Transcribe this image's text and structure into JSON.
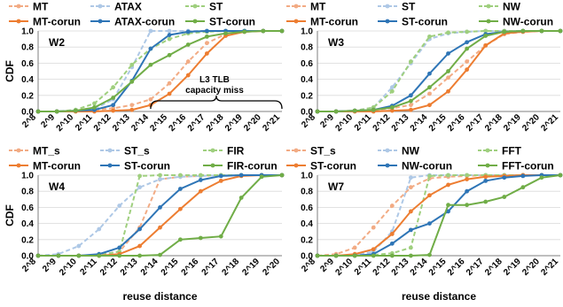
{
  "chart_data": [
    {
      "type": "line",
      "panel_label": "W2",
      "ylabel": "CDF",
      "xlabel": "",
      "ylim": [
        0,
        1
      ],
      "yticks": [
        "0.0",
        "0.2",
        "0.4",
        "0.6",
        "0.8",
        "1.0"
      ],
      "x": [
        "2^8",
        "2^9",
        "2^10",
        "2^11",
        "2^12",
        "2^13",
        "2^14",
        "2^15",
        "2^16",
        "2^17",
        "2^18",
        "2^19",
        "2^20",
        "2^21"
      ],
      "annotation": {
        "line1": "L3 TLB",
        "line2": "capacity miss"
      },
      "series": [
        {
          "name": "MT",
          "color": "#f2ab84",
          "style": "dashed",
          "values": [
            0.0,
            0.0,
            0.01,
            0.02,
            0.04,
            0.08,
            0.15,
            0.35,
            0.62,
            0.85,
            0.96,
            0.99,
            1.0,
            1.0
          ]
        },
        {
          "name": "ATAX",
          "color": "#aec8e6",
          "style": "dashed",
          "values": [
            0.0,
            0.0,
            0.01,
            0.03,
            0.15,
            0.55,
            1.0,
            1.0,
            1.0,
            1.0,
            1.0,
            1.0,
            1.0,
            1.0
          ]
        },
        {
          "name": "ST",
          "color": "#9fcf7e",
          "style": "dashed",
          "values": [
            0.0,
            0.0,
            0.02,
            0.1,
            0.3,
            0.58,
            0.78,
            0.9,
            0.97,
            0.99,
            1.0,
            1.0,
            1.0,
            1.0
          ]
        },
        {
          "name": "MT-corun",
          "color": "#ed7d31",
          "style": "solid",
          "values": [
            0.0,
            0.0,
            0.0,
            0.0,
            0.01,
            0.02,
            0.08,
            0.22,
            0.45,
            0.72,
            0.94,
            0.99,
            1.0,
            1.0
          ]
        },
        {
          "name": "ATAX-corun",
          "color": "#2e75b6",
          "style": "solid",
          "values": [
            0.0,
            0.0,
            0.01,
            0.02,
            0.08,
            0.38,
            0.78,
            0.95,
            0.99,
            1.0,
            1.0,
            1.0,
            1.0,
            1.0
          ]
        },
        {
          "name": "ST-corun",
          "color": "#70ad47",
          "style": "solid",
          "values": [
            0.0,
            0.0,
            0.01,
            0.05,
            0.17,
            0.37,
            0.58,
            0.7,
            0.83,
            0.93,
            0.97,
            0.99,
            1.0,
            1.0
          ]
        }
      ]
    },
    {
      "type": "line",
      "panel_label": "W3",
      "ylabel": "",
      "xlabel": "",
      "ylim": [
        0,
        1
      ],
      "yticks": [
        "0.0",
        "0.2",
        "0.4",
        "0.6",
        "0.8",
        "1.0"
      ],
      "x": [
        "2^8",
        "2^9",
        "2^10",
        "2^11",
        "2^12",
        "2^13",
        "2^14",
        "2^15",
        "2^16",
        "2^17",
        "2^18",
        "2^19",
        "2^20",
        "2^21"
      ],
      "series": [
        {
          "name": "MT",
          "color": "#f2ab84",
          "style": "dashed",
          "values": [
            0.0,
            0.0,
            0.01,
            0.02,
            0.04,
            0.08,
            0.22,
            0.42,
            0.62,
            0.82,
            0.96,
            0.99,
            1.0,
            1.0
          ]
        },
        {
          "name": "ST",
          "color": "#aec8e6",
          "style": "dashed",
          "values": [
            0.0,
            0.0,
            0.01,
            0.05,
            0.3,
            0.6,
            0.9,
            0.97,
            0.99,
            1.0,
            1.0,
            1.0,
            1.0,
            1.0
          ]
        },
        {
          "name": "NW",
          "color": "#9fcf7e",
          "style": "dashed",
          "values": [
            0.0,
            0.0,
            0.01,
            0.05,
            0.25,
            0.62,
            0.93,
            0.98,
            0.99,
            1.0,
            1.0,
            1.0,
            1.0,
            1.0
          ]
        },
        {
          "name": "MT-corun",
          "color": "#ed7d31",
          "style": "solid",
          "values": [
            0.0,
            0.0,
            0.0,
            0.0,
            0.01,
            0.02,
            0.08,
            0.25,
            0.52,
            0.82,
            0.97,
            0.99,
            1.0,
            1.0
          ]
        },
        {
          "name": "ST-corun",
          "color": "#2e75b6",
          "style": "solid",
          "values": [
            0.0,
            0.0,
            0.01,
            0.02,
            0.07,
            0.2,
            0.47,
            0.72,
            0.86,
            0.96,
            0.99,
            1.0,
            1.0,
            1.0
          ]
        },
        {
          "name": "NW-corun",
          "color": "#70ad47",
          "style": "solid",
          "values": [
            0.0,
            0.0,
            0.01,
            0.02,
            0.05,
            0.13,
            0.3,
            0.5,
            0.78,
            0.94,
            0.99,
            1.0,
            1.0,
            1.0
          ]
        }
      ]
    },
    {
      "type": "line",
      "panel_label": "W4",
      "ylabel": "CDF",
      "xlabel": "reuse distance",
      "ylim": [
        0,
        1
      ],
      "yticks": [
        "0.0",
        "0.2",
        "0.4",
        "0.6",
        "0.8",
        "1.0"
      ],
      "x": [
        "2^8",
        "2^9",
        "2^10",
        "2^11",
        "2^12",
        "2^13",
        "2^14",
        "2^15",
        "2^16",
        "2^17",
        "2^18",
        "2^19",
        "2^20"
      ],
      "series": [
        {
          "name": "MT_s",
          "color": "#f2ab84",
          "style": "dashed",
          "values": [
            0.0,
            0.0,
            0.0,
            0.01,
            0.05,
            0.35,
            0.95,
            0.98,
            0.99,
            1.0,
            1.0,
            1.0,
            1.0
          ]
        },
        {
          "name": "ST_s",
          "color": "#aec8e6",
          "style": "dashed",
          "values": [
            0.0,
            0.02,
            0.12,
            0.33,
            0.62,
            0.85,
            0.95,
            0.98,
            0.99,
            1.0,
            1.0,
            1.0,
            1.0
          ]
        },
        {
          "name": "FIR",
          "color": "#9fcf7e",
          "style": "dashed",
          "values": [
            0.0,
            0.0,
            0.0,
            0.01,
            0.05,
            0.99,
            1.0,
            1.0,
            1.0,
            1.0,
            1.0,
            1.0,
            1.0
          ]
        },
        {
          "name": "MT-corun",
          "color": "#ed7d31",
          "style": "solid",
          "values": [
            0.0,
            0.0,
            0.0,
            0.0,
            0.02,
            0.12,
            0.35,
            0.58,
            0.8,
            0.93,
            0.99,
            1.0,
            1.0
          ]
        },
        {
          "name": "ST-corun",
          "color": "#2e75b6",
          "style": "solid",
          "values": [
            0.0,
            0.0,
            0.0,
            0.02,
            0.1,
            0.33,
            0.6,
            0.83,
            0.94,
            0.99,
            1.0,
            1.0,
            1.0
          ]
        },
        {
          "name": "FIR-corun",
          "color": "#70ad47",
          "style": "solid",
          "values": [
            0.0,
            0.0,
            0.0,
            0.0,
            0.0,
            0.0,
            0.01,
            0.2,
            0.22,
            0.24,
            0.72,
            0.98,
            1.0
          ]
        }
      ]
    },
    {
      "type": "line",
      "panel_label": "W7",
      "ylabel": "",
      "xlabel": "reuse distance",
      "ylim": [
        0,
        1
      ],
      "yticks": [
        "0.0",
        "0.2",
        "0.4",
        "0.6",
        "0.8",
        "1.0"
      ],
      "x": [
        "2^8",
        "2^9",
        "2^10",
        "2^11",
        "2^12",
        "2^13",
        "2^14",
        "2^15",
        "2^16",
        "2^17",
        "2^18",
        "2^19",
        "2^20",
        "2^21"
      ],
      "series": [
        {
          "name": "ST_s",
          "color": "#f2ab84",
          "style": "dashed",
          "values": [
            0.0,
            0.02,
            0.1,
            0.35,
            0.62,
            0.85,
            0.96,
            0.98,
            0.99,
            1.0,
            1.0,
            1.0,
            1.0,
            1.0
          ]
        },
        {
          "name": "NW",
          "color": "#aec8e6",
          "style": "dashed",
          "values": [
            0.0,
            0.0,
            0.01,
            0.05,
            0.3,
            0.97,
            1.0,
            1.0,
            1.0,
            1.0,
            1.0,
            1.0,
            1.0,
            1.0
          ]
        },
        {
          "name": "FFT",
          "color": "#9fcf7e",
          "style": "dashed",
          "values": [
            0.0,
            0.0,
            0.0,
            0.01,
            0.03,
            0.1,
            0.99,
            1.0,
            1.0,
            1.0,
            1.0,
            1.0,
            1.0,
            1.0
          ]
        },
        {
          "name": "ST-corun",
          "color": "#ed7d31",
          "style": "solid",
          "values": [
            0.0,
            0.0,
            0.02,
            0.08,
            0.27,
            0.55,
            0.75,
            0.88,
            0.95,
            0.98,
            0.99,
            1.0,
            1.0,
            1.0
          ]
        },
        {
          "name": "NW-corun",
          "color": "#2e75b6",
          "style": "solid",
          "values": [
            0.0,
            0.0,
            0.0,
            0.02,
            0.15,
            0.32,
            0.4,
            0.55,
            0.8,
            0.93,
            0.97,
            0.99,
            1.0,
            1.0
          ]
        },
        {
          "name": "FFT-corun",
          "color": "#70ad47",
          "style": "solid",
          "values": [
            0.0,
            0.0,
            0.0,
            0.0,
            0.0,
            0.0,
            0.01,
            0.63,
            0.63,
            0.67,
            0.73,
            0.85,
            0.97,
            1.0
          ]
        }
      ]
    }
  ]
}
